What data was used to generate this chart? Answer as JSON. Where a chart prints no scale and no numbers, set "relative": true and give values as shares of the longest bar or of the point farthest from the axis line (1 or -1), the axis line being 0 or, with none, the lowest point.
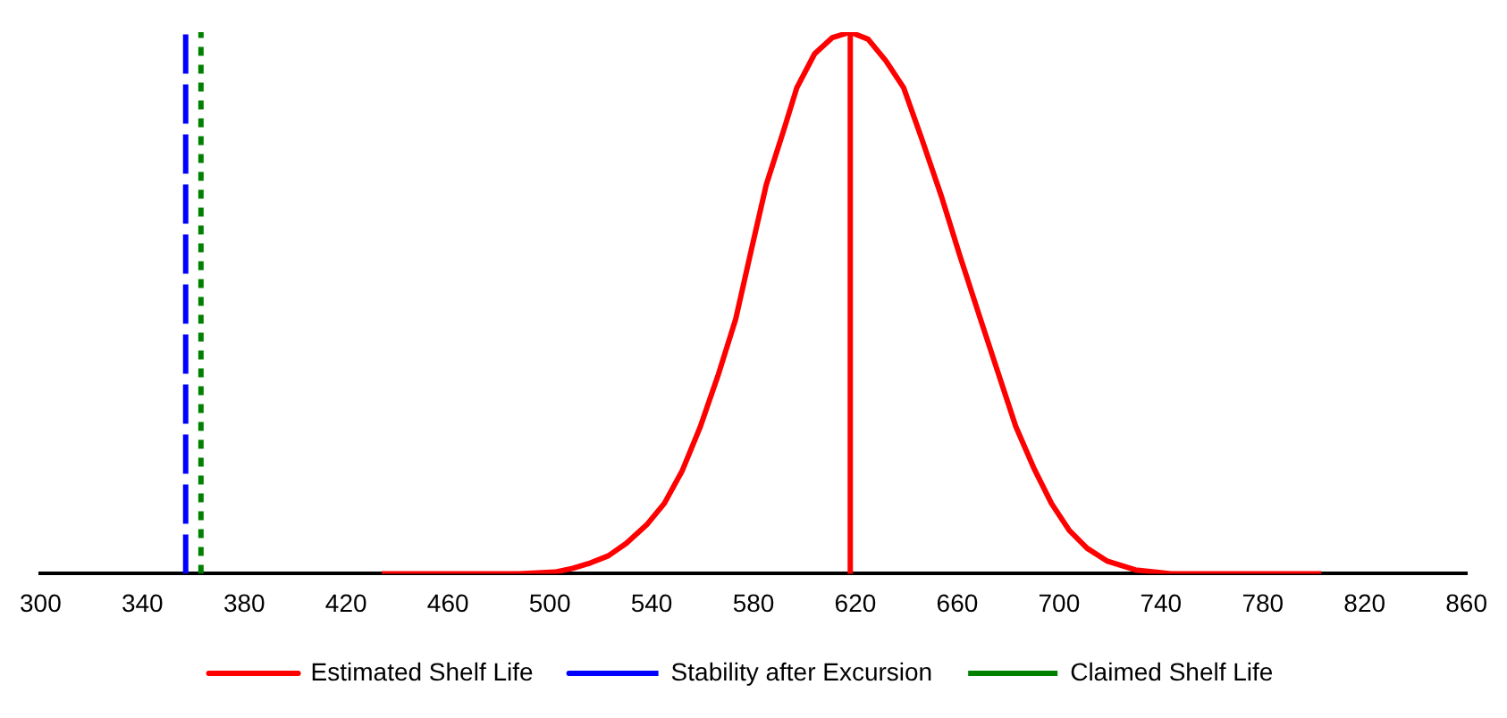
{
  "chart_data": {
    "type": "line",
    "relative": true,
    "xlim": [
      300,
      860
    ],
    "xticks": [
      300,
      340,
      380,
      420,
      460,
      500,
      540,
      580,
      620,
      660,
      700,
      740,
      780,
      820,
      860
    ],
    "grid": false,
    "legend": "bottom",
    "marker": "none",
    "series": [
      {
        "name": "Estimated Shelf Life",
        "color": "#ff0000",
        "line_style": "solid",
        "x": [
          434,
          488,
          502,
          509,
          516,
          523,
          530,
          538,
          545,
          552,
          559,
          566,
          573,
          579,
          585,
          592,
          597,
          604,
          611,
          618,
          625,
          632,
          639,
          646,
          654,
          661,
          669,
          676,
          683,
          690,
          697,
          704,
          711,
          719,
          730,
          744,
          803
        ],
        "values": [
          0,
          0,
          0.003,
          0.01,
          0.02,
          0.033,
          0.056,
          0.09,
          0.13,
          0.19,
          0.27,
          0.365,
          0.47,
          0.595,
          0.718,
          0.821,
          0.897,
          0.96,
          0.99,
          1,
          0.987,
          0.947,
          0.897,
          0.804,
          0.694,
          0.588,
          0.472,
          0.372,
          0.272,
          0.196,
          0.13,
          0.08,
          0.047,
          0.023,
          0.007,
          0,
          0
        ]
      },
      {
        "name": "Stability after Excursion",
        "color": "#0000ff",
        "line_style": "dashed",
        "x": [
          357,
          357
        ],
        "values": [
          0,
          1
        ]
      },
      {
        "name": "Claimed Shelf Life",
        "color": "#008000",
        "line_style": "dotted",
        "x": [
          363,
          363
        ],
        "values": [
          0,
          1
        ]
      }
    ],
    "ref_lines": [
      {
        "axis": "x",
        "value": 618,
        "color": "#ff0000"
      }
    ]
  }
}
